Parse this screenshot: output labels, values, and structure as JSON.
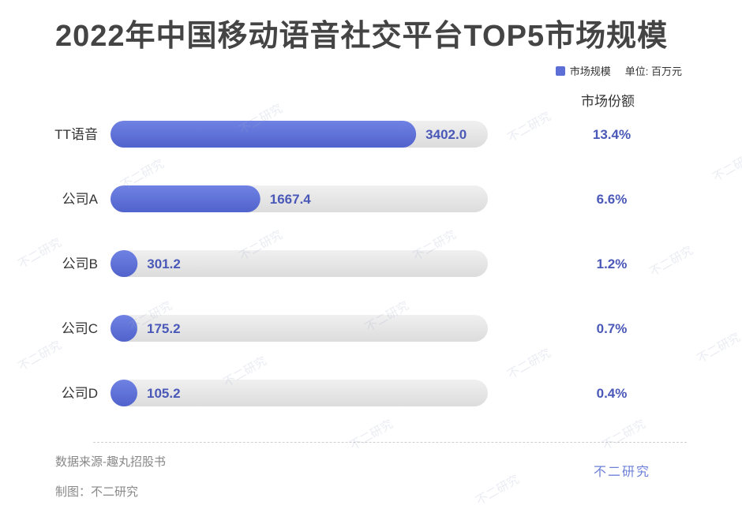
{
  "title": "2022年中国移动语音社交平台TOP5市场规模",
  "legend": {
    "series_label": "市场规模",
    "unit": "单位: 百万元"
  },
  "share_header": "市场份额",
  "source": "数据来源-趣丸招股书",
  "maker": "制图：不二研究",
  "brand": "不二研究",
  "watermark_text": "不二研究",
  "colors": {
    "bar": "#5c6fd6",
    "track": "#e6e6e6",
    "value": "#4a58b8"
  },
  "chart_data": {
    "type": "bar",
    "orientation": "horizontal",
    "categories": [
      "TT语音",
      "公司A",
      "公司B",
      "公司C",
      "公司D"
    ],
    "series": [
      {
        "name": "市场规模",
        "values": [
          3402.0,
          1667.4,
          301.2,
          175.2,
          105.2
        ]
      }
    ],
    "value_labels": [
      "3402.0",
      "1667.4",
      "301.2",
      "175.2",
      "105.2"
    ],
    "market_share": [
      "13.4%",
      "6.6%",
      "1.2%",
      "0.7%",
      "0.4%"
    ],
    "xlim": [
      0,
      4200
    ],
    "grid": false,
    "legend_position": "top-right"
  }
}
